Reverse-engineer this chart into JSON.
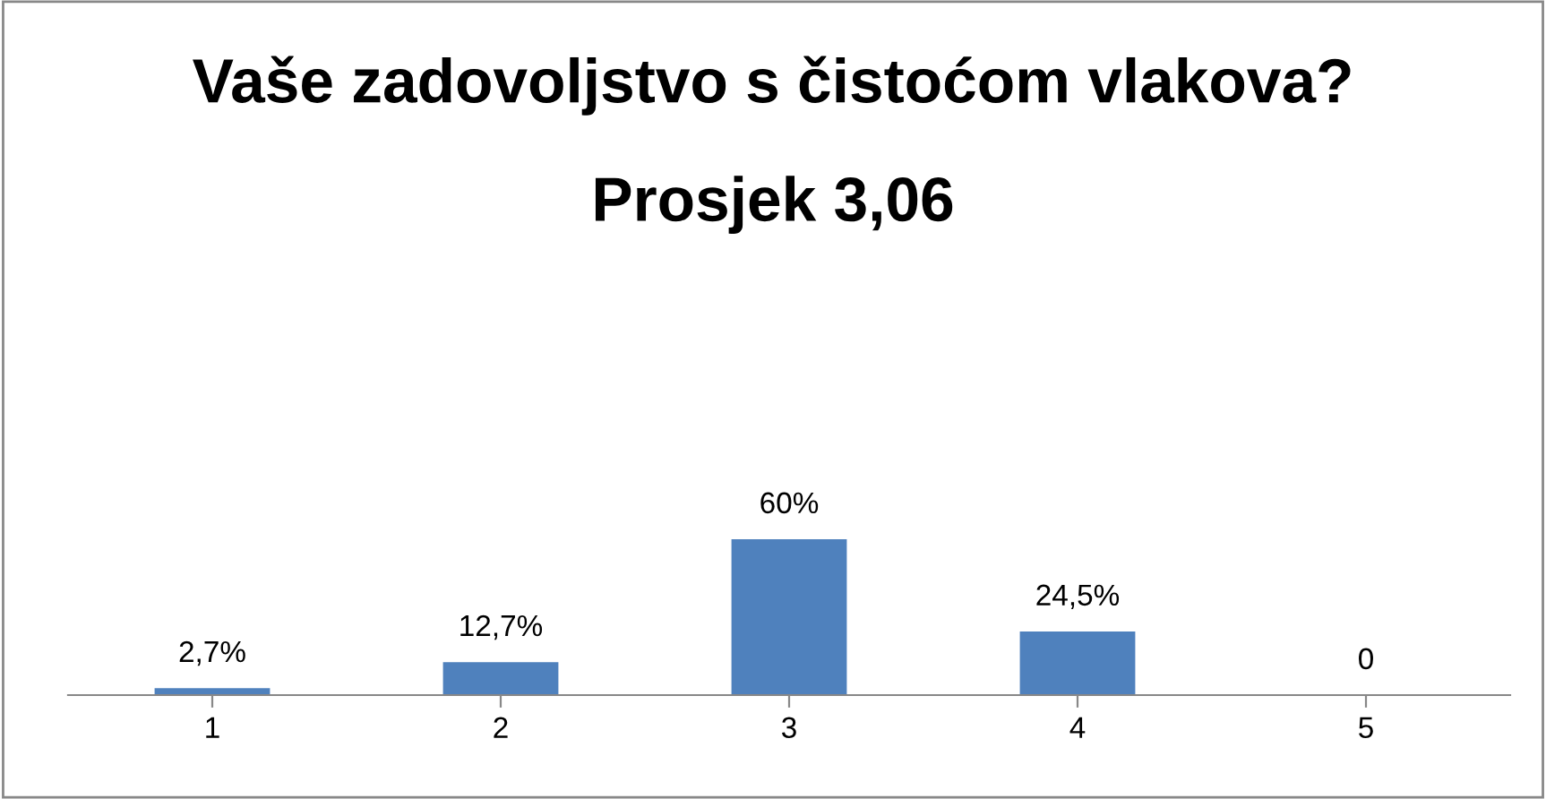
{
  "chart_data": {
    "type": "bar",
    "title": "Vaše zadovoljstvo s čistoćom vlakova?",
    "subtitle": "Prosjek 3,06",
    "categories": [
      "1",
      "2",
      "3",
      "4",
      "5"
    ],
    "values": [
      2.7,
      12.7,
      60,
      24.5,
      0
    ],
    "value_labels": [
      "2,7%",
      "12,7%",
      "60%",
      "24,5%",
      "0"
    ],
    "color": "#4f81bd",
    "grid": false,
    "legend": false
  }
}
